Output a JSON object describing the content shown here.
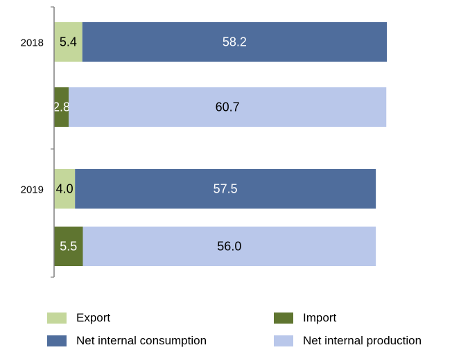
{
  "chart_data": {
    "type": "bar",
    "orientation": "horizontal",
    "stacked": true,
    "title": "",
    "xlabel": "",
    "ylabel": "",
    "categories": [
      "2018",
      "2019"
    ],
    "groups": [
      {
        "category": "2018",
        "bars": [
          {
            "segments": [
              {
                "series": "Export",
                "value": 5.4,
                "label": "5.4"
              },
              {
                "series": "Net internal consumption",
                "value": 58.2,
                "label": "58.2"
              }
            ]
          },
          {
            "segments": [
              {
                "series": "Import",
                "value": 2.8,
                "label": "2.8"
              },
              {
                "series": "Net internal production",
                "value": 60.7,
                "label": "60.7"
              }
            ]
          }
        ]
      },
      {
        "category": "2019",
        "bars": [
          {
            "segments": [
              {
                "series": "Export",
                "value": 4.0,
                "label": "4.0"
              },
              {
                "series": "Net internal consumption",
                "value": 57.5,
                "label": "57.5"
              }
            ]
          },
          {
            "segments": [
              {
                "series": "Import",
                "value": 5.5,
                "label": "5.5"
              },
              {
                "series": "Net internal production",
                "value": 56.0,
                "label": "56.0"
              }
            ]
          }
        ]
      }
    ],
    "series": [
      {
        "name": "Export",
        "color": "#c4d79b"
      },
      {
        "name": "Import",
        "color": "#5f7530"
      },
      {
        "name": "Net internal consumption",
        "color": "#4f6d9c"
      },
      {
        "name": "Net internal production",
        "color": "#b9c7ea"
      }
    ],
    "label_colors": {
      "Export": "#000000",
      "Import": "#ffffff",
      "Net internal consumption": "#ffffff",
      "Net internal production": "#000000"
    },
    "xlim": [
      0,
      63.6
    ],
    "grid": false,
    "legend_position": "bottom"
  }
}
